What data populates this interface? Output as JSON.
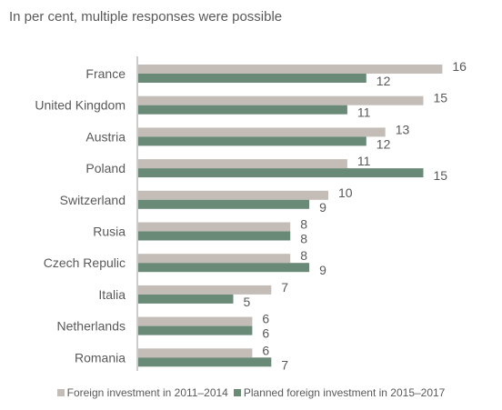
{
  "subtitle": "In per cent, multiple responses were possible",
  "colors": {
    "series1": "#c4bdb7",
    "series2": "#6a8a78",
    "text": "#595959",
    "axis": "#9a9a9a"
  },
  "legend": {
    "series1_label": "Foreign investment in 2011–2014",
    "series2_label": "Planned foreign investment in 2015–2017"
  },
  "chart_data": {
    "type": "bar",
    "orientation": "horizontal",
    "categories": [
      "France",
      "United Kingdom",
      "Austria",
      "Poland",
      "Switzerland",
      "Rusia",
      "Czech Repulic",
      "Italia",
      "Netherlands",
      "Romania"
    ],
    "series": [
      {
        "name": "Foreign investment in 2011–2014",
        "values": [
          16,
          15,
          13,
          11,
          10,
          8,
          8,
          7,
          6,
          6
        ]
      },
      {
        "name": "Planned foreign investment in 2015–2017",
        "values": [
          12,
          11,
          12,
          15,
          9,
          8,
          9,
          5,
          6,
          7
        ]
      }
    ],
    "xlim": [
      0,
      16
    ],
    "grid": false,
    "legend_position": "bottom"
  }
}
